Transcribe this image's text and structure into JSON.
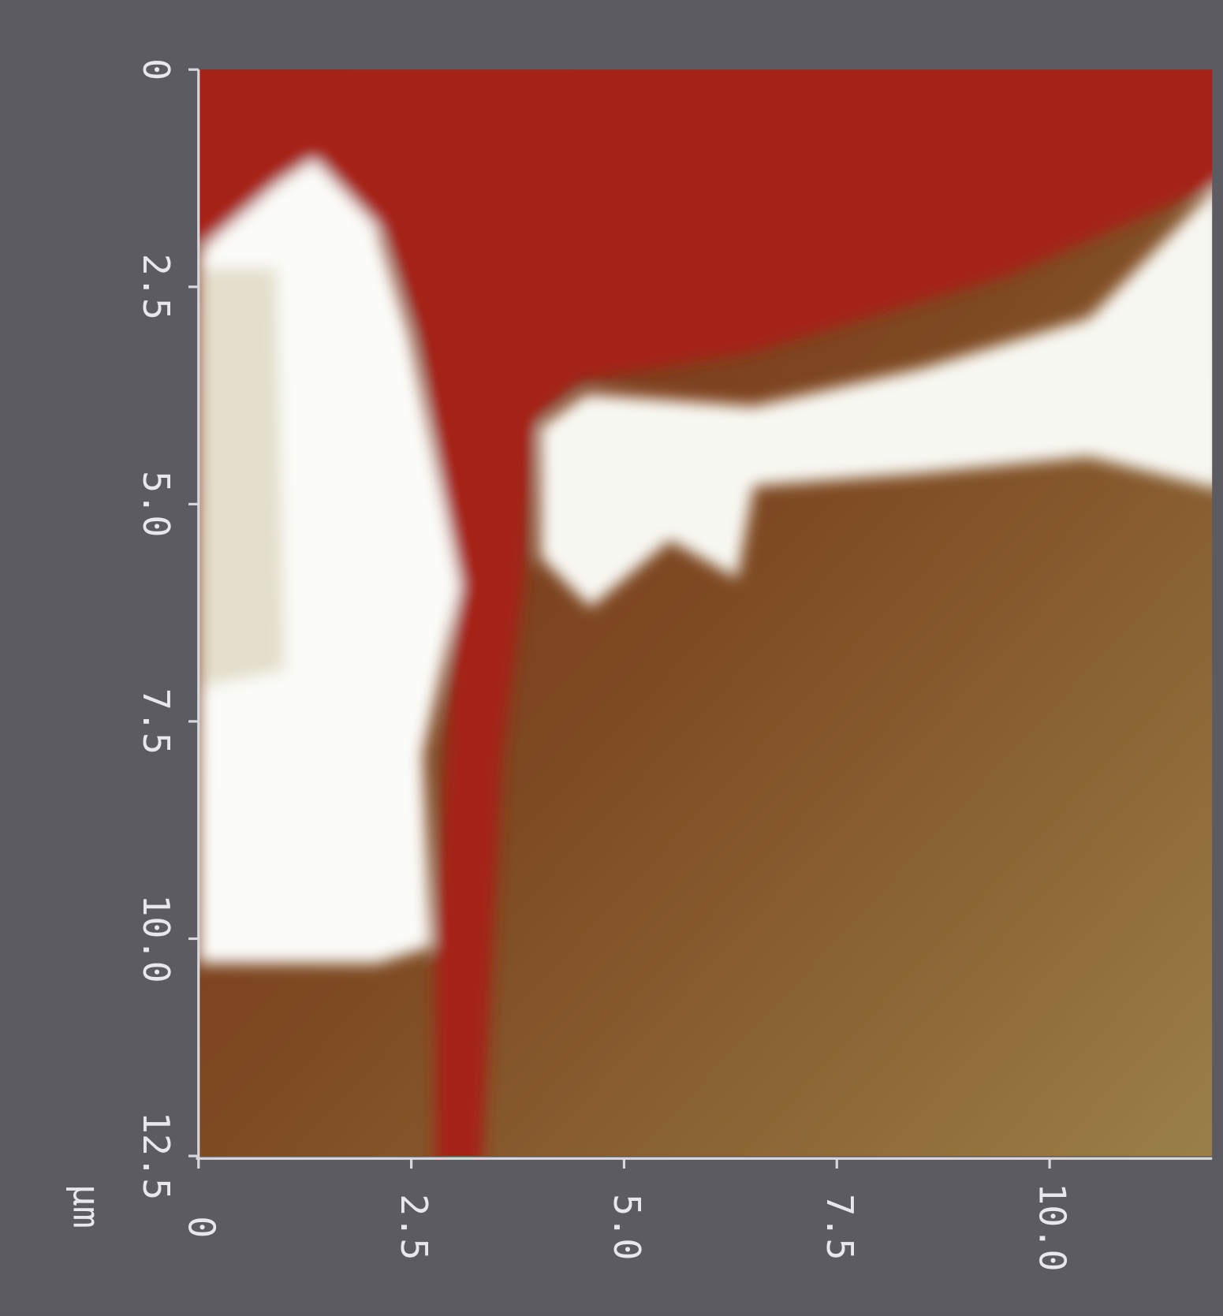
{
  "chart_data": {
    "type": "image",
    "unit": "µm",
    "xlim": [
      0,
      11.9
    ],
    "xticks": [
      0,
      2.5,
      {
        "value": 5,
        "label": "5.0"
      },
      7.5,
      {
        "value": 10,
        "label": "10.0"
      }
    ],
    "ylim": [
      0,
      12.5
    ],
    "yticks": [
      0,
      2.5,
      {
        "value": 5,
        "label": "5.0"
      },
      7.5,
      {
        "value": 10,
        "label": "10.0"
      },
      12.5
    ]
  }
}
